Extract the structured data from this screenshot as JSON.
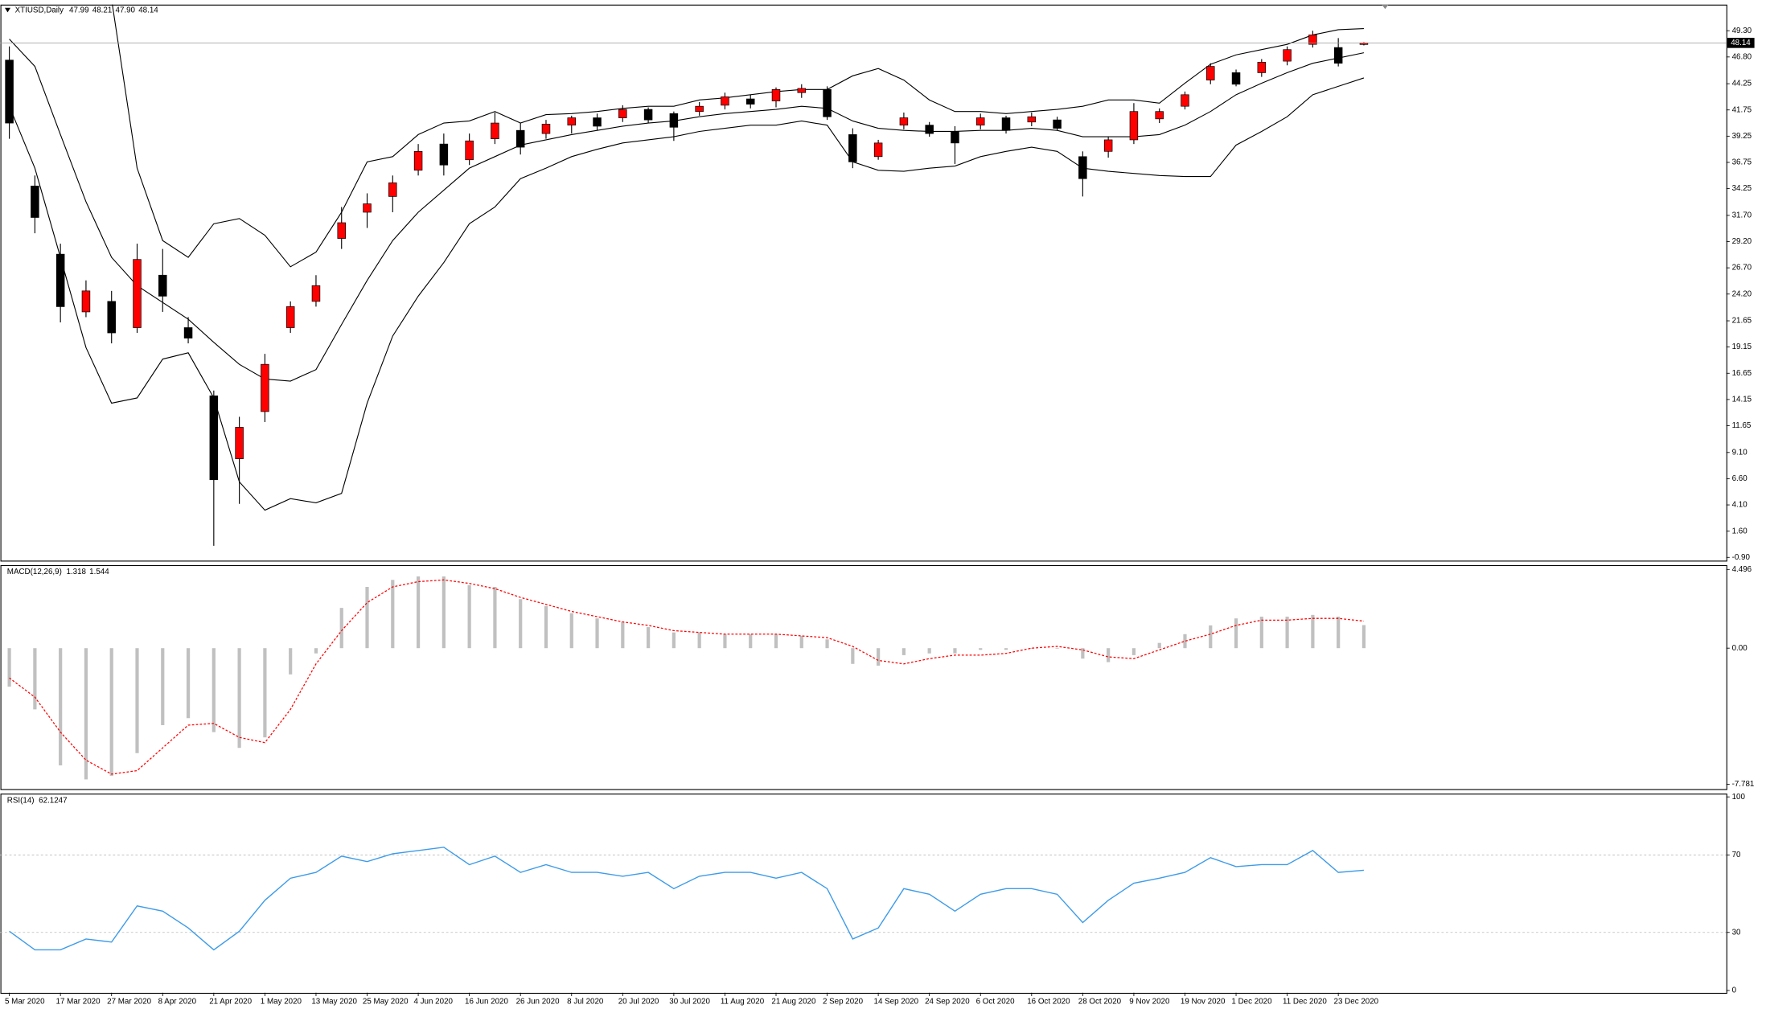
{
  "chart_data": [
    {
      "type": "candlestick",
      "title": "XTIUSD,Daily",
      "last_labels": [
        "47.99",
        "48.21",
        "47.90",
        "48.14"
      ],
      "categories": [
        "5 Mar 2020",
        null,
        "17 Mar 2020",
        null,
        "27 Mar 2020",
        null,
        "8 Apr 2020",
        null,
        "21 Apr 2020",
        null,
        "1 May 2020",
        null,
        "13 May 2020",
        null,
        "25 May 2020",
        null,
        "4 Jun 2020",
        null,
        "16 Jun 2020",
        null,
        "26 Jun 2020",
        null,
        "8 Jul 2020",
        null,
        "20 Jul 2020",
        null,
        "30 Jul 2020",
        null,
        "11 Aug 2020",
        null,
        "21 Aug 2020",
        null,
        "2 Sep 2020",
        null,
        "14 Sep 2020",
        null,
        "24 Sep 2020",
        null,
        "6 Oct 2020",
        null,
        "16 Oct 2020",
        null,
        "28 Oct 2020",
        null,
        "9 Nov 2020",
        null,
        "19 Nov 2020",
        null,
        "1 Dec 2020",
        null,
        "11 Dec 2020",
        null,
        "23 Dec 2020",
        null
      ],
      "open": [
        46.5,
        34.5,
        28.0,
        22.5,
        23.5,
        21.0,
        26.0,
        21.0,
        14.5,
        8.5,
        13.0,
        21.0,
        23.5,
        29.5,
        32.0,
        33.5,
        36.0,
        38.5,
        37.0,
        39.0,
        39.8,
        39.5,
        40.3,
        41.0,
        41.0,
        41.8,
        41.4,
        41.6,
        42.2,
        42.8,
        42.6,
        43.4,
        43.7,
        39.4,
        37.3,
        40.3,
        40.3,
        39.7,
        40.3,
        41.0,
        40.6,
        40.8,
        37.3,
        37.8,
        38.9,
        40.9,
        42.1,
        44.6,
        45.3,
        45.3,
        46.4,
        48.0,
        47.7,
        47.99
      ],
      "high": [
        47.8,
        35.5,
        29.0,
        25.5,
        24.5,
        29.0,
        28.5,
        22.0,
        15.0,
        12.5,
        18.5,
        23.5,
        26.0,
        32.5,
        33.8,
        35.5,
        38.5,
        39.5,
        39.5,
        41.5,
        40.5,
        40.8,
        41.2,
        41.4,
        42.2,
        42.0,
        41.6,
        42.5,
        43.4,
        43.2,
        43.9,
        44.2,
        44.0,
        40.0,
        38.9,
        41.5,
        40.6,
        40.2,
        41.4,
        41.2,
        41.5,
        41.1,
        37.8,
        39.2,
        42.4,
        41.9,
        43.5,
        46.2,
        45.6,
        46.6,
        47.8,
        49.3,
        48.6,
        48.21
      ],
      "low": [
        39.0,
        30.0,
        21.5,
        22.0,
        19.5,
        20.5,
        22.5,
        19.5,
        0.2,
        4.2,
        12.0,
        20.5,
        23.0,
        28.5,
        30.5,
        32.0,
        35.5,
        35.5,
        36.5,
        38.5,
        37.5,
        39.0,
        39.5,
        39.8,
        40.6,
        40.5,
        38.8,
        41.2,
        41.8,
        41.9,
        42.0,
        42.9,
        40.8,
        36.2,
        37.0,
        39.9,
        39.2,
        36.6,
        39.9,
        39.5,
        40.2,
        39.8,
        33.5,
        37.2,
        38.5,
        40.5,
        41.8,
        44.2,
        44.0,
        44.9,
        46.0,
        47.7,
        45.9,
        47.9
      ],
      "close": [
        40.5,
        31.5,
        23.0,
        24.5,
        20.5,
        27.5,
        24.0,
        20.0,
        6.5,
        11.5,
        17.5,
        23.0,
        25.0,
        31.0,
        32.8,
        34.8,
        37.8,
        36.5,
        38.8,
        40.5,
        38.2,
        40.4,
        41.0,
        40.2,
        41.8,
        40.8,
        40.1,
        42.1,
        43.0,
        42.3,
        43.7,
        43.8,
        41.1,
        36.8,
        38.6,
        41.0,
        39.5,
        38.6,
        41.0,
        39.8,
        41.1,
        40.0,
        35.2,
        38.9,
        41.6,
        41.6,
        43.2,
        45.9,
        44.2,
        46.3,
        47.5,
        48.9,
        46.2,
        48.14
      ],
      "up_color": "#ff0000",
      "down_color": "#000000",
      "bands": [
        {
          "color": "#000000",
          "values": [
            null,
            null,
            null,
            null,
            52.3,
            36.2,
            29.3,
            27.7,
            30.9,
            31.4,
            29.8,
            26.8,
            28.2,
            32.0,
            36.8,
            37.3,
            39.4,
            40.5,
            40.7,
            41.6,
            40.5,
            41.3,
            41.4,
            41.6,
            41.9,
            42.1,
            42.1,
            42.7,
            42.9,
            43.2,
            43.5,
            43.7,
            43.7,
            45.0,
            45.7,
            44.6,
            42.7,
            41.6,
            41.6,
            41.4,
            41.6,
            41.8,
            42.1,
            42.7,
            42.7,
            42.4,
            44.3,
            46.1,
            47.0,
            47.5,
            48.0,
            48.9,
            49.4,
            49.5
          ]
        },
        {
          "color": "#000000",
          "values": [
            48.5,
            45.9,
            39.4,
            33.0,
            27.7,
            25.0,
            23.4,
            21.8,
            19.6,
            17.5,
            16.1,
            15.9,
            17.0,
            21.3,
            25.5,
            29.3,
            32.0,
            34.1,
            36.2,
            37.3,
            38.4,
            38.9,
            39.4,
            39.8,
            40.2,
            40.5,
            40.7,
            41.1,
            41.4,
            41.6,
            41.8,
            42.1,
            41.9,
            40.7,
            40.0,
            39.8,
            39.7,
            39.7,
            39.8,
            39.8,
            40.0,
            39.8,
            39.2,
            39.2,
            39.2,
            39.4,
            40.3,
            41.6,
            43.2,
            44.3,
            45.3,
            46.2,
            46.7,
            47.2
          ]
        },
        {
          "color": "#000000",
          "values": [
            42.1,
            36.2,
            27.7,
            19.1,
            13.8,
            14.3,
            18.0,
            18.6,
            14.3,
            6.3,
            3.6,
            4.7,
            4.3,
            5.2,
            13.8,
            20.2,
            24.0,
            27.2,
            30.9,
            32.5,
            35.2,
            36.2,
            37.3,
            38.0,
            38.6,
            38.9,
            39.2,
            39.7,
            40.0,
            40.3,
            40.3,
            40.7,
            40.3,
            36.8,
            36.0,
            35.9,
            36.2,
            36.4,
            37.3,
            37.8,
            38.2,
            37.8,
            36.2,
            35.9,
            35.7,
            35.5,
            35.4,
            35.4,
            38.4,
            39.7,
            41.1,
            43.2,
            44.0,
            44.8
          ]
        }
      ],
      "ylim": [
        -1.2,
        51.8
      ],
      "yticks": [
        {
          "value": 49.3,
          "label": "49.30"
        },
        {
          "value": 46.8,
          "label": "46.80"
        },
        44.25,
        41.75,
        39.25,
        36.75,
        34.25,
        {
          "value": 31.7,
          "label": "31.70"
        },
        {
          "value": 29.2,
          "label": "29.20"
        },
        {
          "value": 26.7,
          "label": "26.70"
        },
        {
          "value": 24.2,
          "label": "24.20"
        },
        21.65,
        19.15,
        16.65,
        14.15,
        11.65,
        {
          "value": 9.1,
          "label": "9.10"
        },
        {
          "value": 6.6,
          "label": "6.60"
        },
        {
          "value": 4.1,
          "label": "4.10"
        },
        {
          "value": 1.6,
          "label": "1.60"
        },
        {
          "value": -0.9,
          "label": "-0.90"
        }
      ]
    },
    {
      "type": "macd",
      "title": "MACD(12,26,9)",
      "histogram": {
        "color": "#c0c0c0",
        "values": [
          -2.2,
          -3.5,
          -6.7,
          -7.5,
          -7.3,
          -6.0,
          -4.4,
          -4.0,
          -4.8,
          -5.7,
          -5.1,
          -1.5,
          -0.3,
          2.3,
          3.5,
          3.9,
          4.1,
          4.1,
          3.6,
          3.5,
          2.8,
          2.4,
          2.0,
          1.7,
          1.5,
          1.2,
          0.9,
          0.9,
          0.8,
          0.8,
          0.8,
          0.7,
          0.5,
          -0.9,
          -1.0,
          -0.4,
          -0.3,
          -0.3,
          -0.1,
          -0.1,
          0.0,
          0.0,
          -0.6,
          -0.8,
          -0.4,
          0.3,
          0.8,
          1.3,
          1.7,
          1.8,
          1.8,
          1.9,
          1.8,
          1.318
        ]
      },
      "signal": {
        "color": "#ff0000",
        "values": [
          -1.7,
          -2.8,
          -4.8,
          -6.4,
          -7.2,
          -7.0,
          -5.7,
          -4.4,
          -4.3,
          -5.1,
          -5.4,
          -3.5,
          -0.9,
          1.0,
          2.6,
          3.5,
          3.8,
          3.9,
          3.7,
          3.4,
          2.9,
          2.5,
          2.1,
          1.8,
          1.5,
          1.3,
          1.0,
          0.9,
          0.8,
          0.8,
          0.8,
          0.7,
          0.6,
          0.1,
          -0.7,
          -0.9,
          -0.6,
          -0.4,
          -0.4,
          -0.3,
          0.0,
          0.1,
          -0.1,
          -0.5,
          -0.6,
          -0.1,
          0.4,
          0.8,
          1.3,
          1.6,
          1.6,
          1.7,
          1.7,
          1.544
        ]
      },
      "ylim": [
        -8.05,
        4.75
      ],
      "yticks": [
        4.496,
        {
          "value": 0,
          "label": "0.00"
        },
        -7.781
      ]
    },
    {
      "type": "line",
      "title": "RSI(14)",
      "color": "#3d9be9",
      "values": [
        30.6,
        21.0,
        21.0,
        26.6,
        25.0,
        43.7,
        41.0,
        32.3,
        21.0,
        30.6,
        46.6,
        58.0,
        61.0,
        69.4,
        66.6,
        70.6,
        72.3,
        74.0,
        65.0,
        69.4,
        61.0,
        65.0,
        61.0,
        61.0,
        59.0,
        61.0,
        52.6,
        59.0,
        61.0,
        61.0,
        58.0,
        61.0,
        52.6,
        26.6,
        32.3,
        52.6,
        49.7,
        41.0,
        49.7,
        52.6,
        52.6,
        49.7,
        35.1,
        46.6,
        55.4,
        58.0,
        61.0,
        68.6,
        64.0,
        65.0,
        65.0,
        72.3,
        61.0,
        62.1247
      ],
      "ylim": [
        0,
        100
      ],
      "yticks": [
        100,
        70,
        30,
        0
      ],
      "levels": "dashed"
    }
  ]
}
